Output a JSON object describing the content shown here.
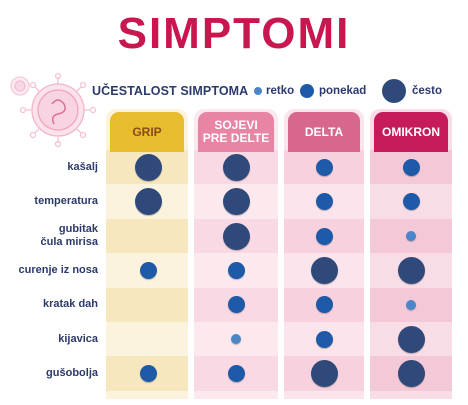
{
  "title": "SIMPTOMI",
  "colors": {
    "title": "#c8174f",
    "dark_blue": "#2f4a7a",
    "mid_blue": "#1f5aa8",
    "light_blue": "#4a86c8",
    "text": "#2c3a6b",
    "grip_head": "#e7bd2e",
    "sojevi_head": "#e884a4",
    "delta_head": "#d8678d",
    "omikron_head": "#c61b5a"
  },
  "legend": {
    "title": "UČESTALOST SIMPTOMA",
    "items": [
      {
        "label": "retko",
        "level": "small"
      },
      {
        "label": "ponekad",
        "level": "medium"
      },
      {
        "label": "često",
        "level": "large"
      }
    ]
  },
  "columns": [
    {
      "label": "GRIP"
    },
    {
      "label": "SOJEVI\nPRE DELTE"
    },
    {
      "label": "DELTA"
    },
    {
      "label": "OMIKRON"
    }
  ],
  "rows": [
    {
      "label": "kašalj",
      "values": [
        "large",
        "large",
        "medium",
        "medium"
      ]
    },
    {
      "label": "temperatura",
      "values": [
        "large",
        "large",
        "medium",
        "medium"
      ]
    },
    {
      "label": "gubitak\nčula mirisa",
      "values": [
        "",
        "large",
        "medium",
        "small"
      ]
    },
    {
      "label": "curenje iz nosa",
      "values": [
        "medium",
        "medium",
        "large",
        "large"
      ]
    },
    {
      "label": "kratak dah",
      "values": [
        "",
        "medium",
        "medium",
        "small"
      ]
    },
    {
      "label": "kijavica",
      "values": [
        "",
        "small",
        "medium",
        "large"
      ]
    },
    {
      "label": "gušobolja",
      "values": [
        "medium",
        "medium",
        "large",
        "large"
      ]
    }
  ]
}
